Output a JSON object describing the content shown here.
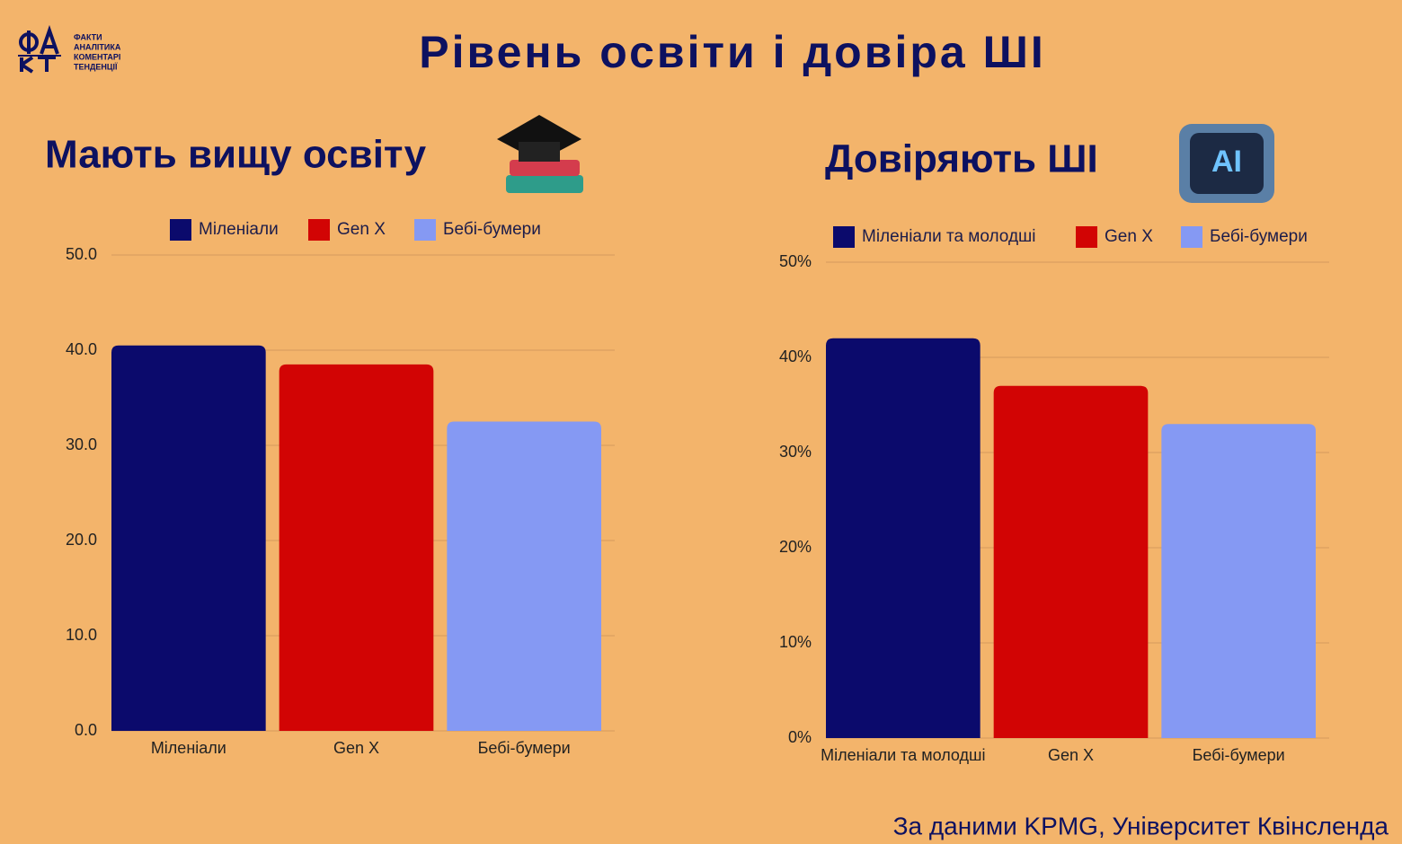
{
  "title": "Рівень освіти і довіра ШІ",
  "logo": {
    "lines": [
      "ФАКТИ",
      "АНАЛІТИКА",
      "КОМЕНТАРІ",
      "ТЕНДЕНЦІЇ"
    ]
  },
  "source": "За даними KPMG, Університет Квінсленда",
  "chart_data": [
    {
      "type": "bar",
      "title": "Мають вищу освіту",
      "categories": [
        "Міленіали",
        "Gen X",
        "Бебі-бумери"
      ],
      "values": [
        40.5,
        38.5,
        32.5
      ],
      "colors": [
        "#0b0a6c",
        "#d20404",
        "#8599f3"
      ],
      "ylim": [
        0,
        50
      ],
      "yticks": [
        {
          "value": 0,
          "label": "0.0"
        },
        {
          "value": 10,
          "label": "10.0"
        },
        {
          "value": 20,
          "label": "20.0"
        },
        {
          "value": 30,
          "label": "30.0"
        },
        {
          "value": 40,
          "label": "40.0"
        },
        {
          "value": 50,
          "label": "50.0"
        }
      ],
      "grid": true
    },
    {
      "type": "bar",
      "title": "Довіряють ШІ",
      "categories": [
        "Міленіали та молодші",
        "Gen X",
        "Бебі-бумери"
      ],
      "values": [
        42,
        37,
        33
      ],
      "colors": [
        "#0b0a6c",
        "#d20404",
        "#8599f3"
      ],
      "ylim": [
        0,
        50
      ],
      "yticks": [
        {
          "value": 0,
          "label": "0%"
        },
        {
          "value": 10,
          "label": "10%"
        },
        {
          "value": 20,
          "label": "20%"
        },
        {
          "value": 30,
          "label": "30%"
        },
        {
          "value": 40,
          "label": "40%"
        },
        {
          "value": 50,
          "label": "50%"
        }
      ],
      "grid": true
    }
  ]
}
